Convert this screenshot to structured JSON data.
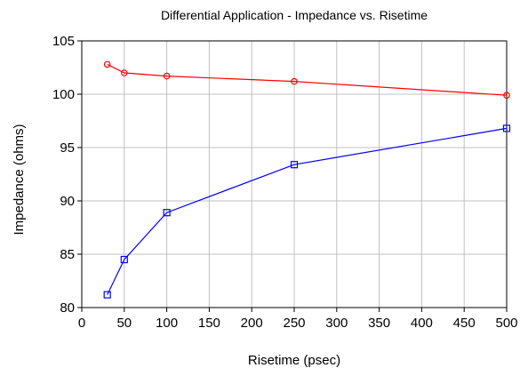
{
  "chart_data": {
    "type": "line",
    "title": "Differential Application - Impedance vs. Risetime",
    "xlabel": "Risetime (psec)",
    "ylabel": "Impedance (ohms)",
    "xlim": [
      0,
      500
    ],
    "ylim": [
      80,
      105
    ],
    "xticks": [
      0,
      50,
      100,
      150,
      200,
      250,
      300,
      350,
      400,
      450,
      500
    ],
    "yticks": [
      80,
      85,
      90,
      95,
      100,
      105
    ],
    "grid": true,
    "legend": "none",
    "series": [
      {
        "color": "#ff0000",
        "marker": "circle",
        "points": [
          {
            "x": 30,
            "y": 102.8
          },
          {
            "x": 50,
            "y": 102.0
          },
          {
            "x": 100,
            "y": 101.7
          },
          {
            "x": 250,
            "y": 101.2
          },
          {
            "x": 500,
            "y": 99.9
          }
        ]
      },
      {
        "color": "#0000ff",
        "marker": "square",
        "points": [
          {
            "x": 30,
            "y": 81.2
          },
          {
            "x": 50,
            "y": 84.5
          },
          {
            "x": 100,
            "y": 88.9
          },
          {
            "x": 250,
            "y": 93.4
          },
          {
            "x": 500,
            "y": 96.8
          }
        ]
      }
    ]
  }
}
